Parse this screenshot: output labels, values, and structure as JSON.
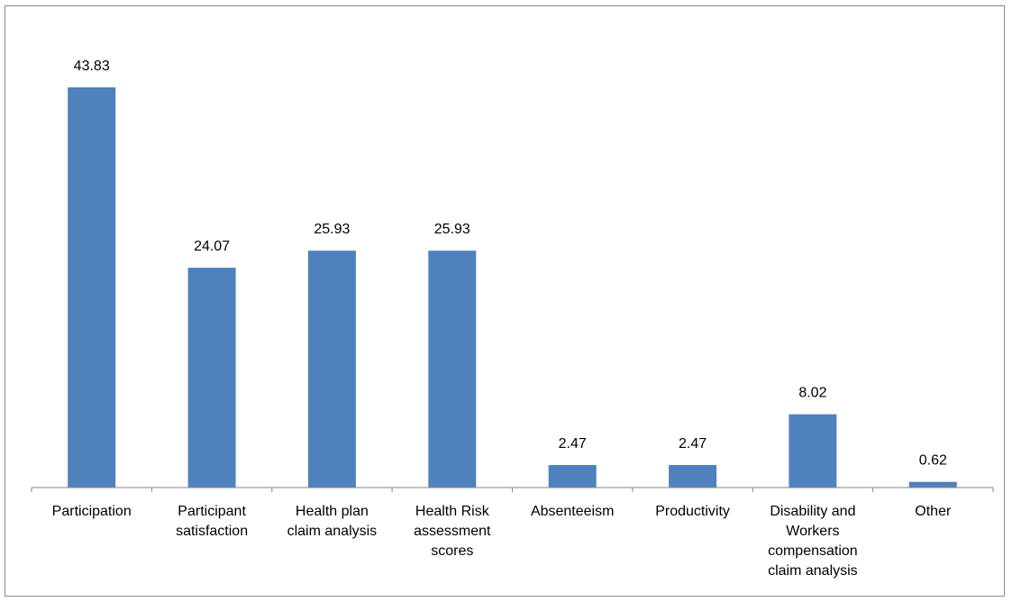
{
  "chart_data": {
    "type": "bar",
    "categories": [
      [
        "Participation"
      ],
      [
        "Participant",
        "satisfaction"
      ],
      [
        "Health plan",
        "claim analysis"
      ],
      [
        "Health Risk",
        "assessment",
        "scores"
      ],
      [
        "Absenteeism"
      ],
      [
        "Productivity"
      ],
      [
        "Disability and",
        "Workers",
        "compensation",
        "claim analysis"
      ],
      [
        "Other"
      ]
    ],
    "values": [
      43.83,
      24.07,
      25.93,
      25.93,
      2.47,
      2.47,
      8.02,
      0.62
    ],
    "value_labels": [
      "43.83",
      "24.07",
      "25.93",
      "25.93",
      "2.47",
      "2.47",
      "8.02",
      "0.62"
    ],
    "title": "",
    "xlabel": "",
    "ylabel": "",
    "ylim": [
      0,
      45
    ],
    "grid": false,
    "legend": "none",
    "bar_color": "#4F81BD",
    "axis_color": "#868686"
  }
}
